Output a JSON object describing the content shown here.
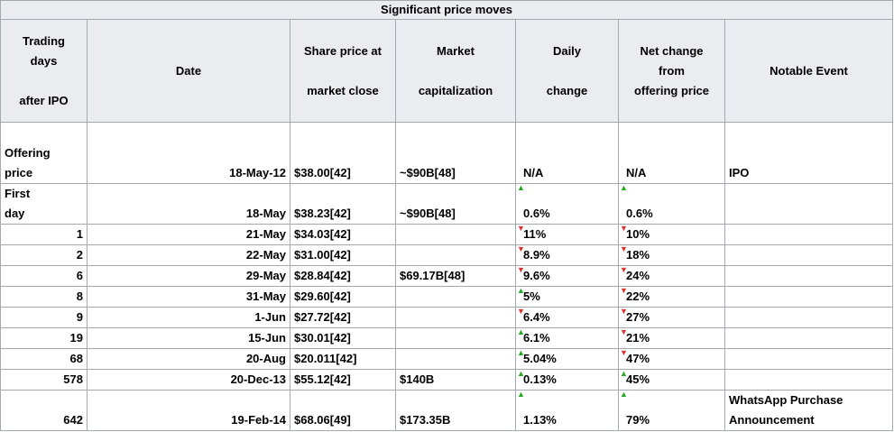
{
  "title": "Significant price moves",
  "headers": {
    "trading_days": [
      "Trading",
      "days",
      "",
      "after IPO"
    ],
    "date": "Date",
    "share_price": [
      "Share price at",
      "",
      "market close"
    ],
    "market_cap": [
      "Market",
      "",
      "capitalization"
    ],
    "daily_change": [
      "Daily",
      "",
      "change"
    ],
    "net_change": [
      "Net change",
      "from",
      "offering price"
    ],
    "notable_event": "Notable Event"
  },
  "rows": [
    {
      "day": [
        "Offering",
        "price"
      ],
      "date": "18-May-12",
      "price": "$38.00[42]",
      "cap": "~$90B[48]",
      "daily": "N/A",
      "daily_dir": "",
      "net": "N/A",
      "net_dir": "",
      "event": "IPO"
    },
    {
      "day": [
        "First",
        "day"
      ],
      "date": "18-May",
      "price": "$38.23[42]",
      "cap": "~$90B[48]",
      "daily": "0.6%",
      "daily_dir": "up",
      "net": "0.6%",
      "net_dir": "up",
      "event": ""
    },
    {
      "day": [
        "1"
      ],
      "date": "21-May",
      "price": "$34.03[42]",
      "cap": "",
      "daily": "11%",
      "daily_dir": "down",
      "net": "10%",
      "net_dir": "down",
      "event": ""
    },
    {
      "day": [
        "2"
      ],
      "date": "22-May",
      "price": "$31.00[42]",
      "cap": "",
      "daily": "8.9%",
      "daily_dir": "down",
      "net": "18%",
      "net_dir": "down",
      "event": ""
    },
    {
      "day": [
        "6"
      ],
      "date": "29-May",
      "price": "$28.84[42]",
      "cap": "$69.17B[48]",
      "daily": "9.6%",
      "daily_dir": "down",
      "net": "24%",
      "net_dir": "down",
      "event": ""
    },
    {
      "day": [
        "8"
      ],
      "date": "31-May",
      "price": "$29.60[42]",
      "cap": "",
      "daily": "5%",
      "daily_dir": "up",
      "net": "22%",
      "net_dir": "down",
      "event": ""
    },
    {
      "day": [
        "9"
      ],
      "date": "1-Jun",
      "price": "$27.72[42]",
      "cap": "",
      "daily": "6.4%",
      "daily_dir": "down",
      "net": "27%",
      "net_dir": "down",
      "event": ""
    },
    {
      "day": [
        "19"
      ],
      "date": "15-Jun",
      "price": "$30.01[42]",
      "cap": "",
      "daily": "6.1%",
      "daily_dir": "up",
      "net": "21%",
      "net_dir": "down",
      "event": ""
    },
    {
      "day": [
        "68"
      ],
      "date": "20-Aug",
      "price": "$20.011[42]",
      "cap": "",
      "daily": "5.04%",
      "daily_dir": "up",
      "net": "47%",
      "net_dir": "down",
      "event": ""
    },
    {
      "day": [
        "578"
      ],
      "date": "20-Dec-13",
      "price": "$55.12[42]",
      "cap": "$140B",
      "daily": "0.13%",
      "daily_dir": "up",
      "net": "45%",
      "net_dir": "up",
      "event": ""
    },
    {
      "day": [
        "642"
      ],
      "date": "19-Feb-14",
      "price": "$68.06[49]",
      "cap": "$173.35B",
      "daily": "1.13%",
      "daily_dir": "up",
      "net": "79%",
      "net_dir": "up",
      "event": "WhatsApp Purchase Announcement"
    }
  ],
  "colors": {
    "header_bg": "#eaecf0",
    "border": "#a2a9b1",
    "up": "#22aa22",
    "down": "#dd3333"
  },
  "icons": {
    "up": "triangle-up-icon",
    "down": "triangle-down-icon"
  }
}
